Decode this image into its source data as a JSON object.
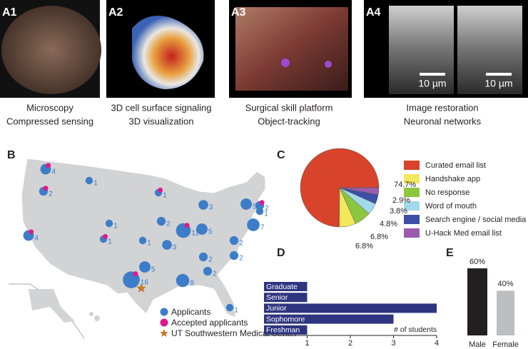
{
  "panels": [
    {
      "label": "A1",
      "caption": [
        "Microscopy",
        "Compressed sensing"
      ]
    },
    {
      "label": "A2",
      "caption": [
        "3D cell surface signaling",
        "3D visualization"
      ]
    },
    {
      "label": "A3",
      "caption": [
        "Surgical skill platform",
        "Object-tracking"
      ]
    },
    {
      "label": "A4",
      "caption": [
        "Image restoration",
        "Neuronal networks"
      ],
      "scale_bar": "10 µm"
    }
  ],
  "map": {
    "label": "B",
    "points": [
      {
        "count": 4,
        "accepted": true
      },
      {
        "count": 2,
        "accepted": true
      },
      {
        "count": 1,
        "accepted": false
      },
      {
        "count": 1,
        "accepted": true
      },
      {
        "count": 4,
        "accepted": true
      },
      {
        "count": 1,
        "accepted": false
      },
      {
        "count": 1,
        "accepted": true
      },
      {
        "count": 2,
        "accepted": false
      },
      {
        "count": 1,
        "accepted": false
      },
      {
        "count": 3,
        "accepted": false
      },
      {
        "count": 11,
        "accepted": true
      },
      {
        "count": 3,
        "accepted": false
      },
      {
        "count": 5,
        "accepted": false
      },
      {
        "count": 5,
        "accepted": false
      },
      {
        "count": 2,
        "accepted": true
      },
      {
        "count": 1,
        "accepted": false
      },
      {
        "count": 7,
        "accepted": false
      },
      {
        "count": 2,
        "accepted": false
      },
      {
        "count": 2,
        "accepted": false
      },
      {
        "count": 2,
        "accepted": false
      },
      {
        "count": 2,
        "accepted": false
      },
      {
        "count": 16,
        "accepted": true
      },
      {
        "count": 5,
        "accepted": false
      },
      {
        "count": 8,
        "accepted": false
      },
      {
        "count": 1,
        "accepted": false
      }
    ],
    "legend": [
      "Applicants",
      "Accepted applicants",
      "UT Southwestern Medical Center"
    ],
    "colors": {
      "applicants": "#3d7cc9",
      "accepted": "#e0198a",
      "center": "#c8782c",
      "land": "#d1d3d4"
    }
  },
  "chart_data": [
    {
      "type": "pie",
      "label": "C",
      "categories": [
        "Curated email list",
        "Handshake app",
        "No response",
        "Word of mouth",
        "Search engine / social media",
        "U-Hack Med email list"
      ],
      "values": [
        74.7,
        6.8,
        6.8,
        4.8,
        3.8,
        2.9
      ],
      "value_labels": [
        "74.7%",
        "6.8%",
        "6.8%",
        "4.8%",
        "3.8%",
        "2.9%"
      ],
      "colors": [
        "#d8432b",
        "#f3e85c",
        "#8dc63f",
        "#a3d9ea",
        "#3d4fa6",
        "#9b5cae"
      ]
    },
    {
      "type": "hbar",
      "label": "D",
      "categories": [
        "Graduate",
        "Senior",
        "Junior",
        "Sophomore",
        "Freshman"
      ],
      "values": [
        1,
        1,
        4,
        3,
        1
      ],
      "color": "#2e3480",
      "xlim": [
        0,
        4
      ],
      "xticks": [
        1,
        2,
        3,
        4
      ],
      "x_label": "# of students"
    },
    {
      "type": "bar",
      "label": "E",
      "categories": [
        "Male",
        "Female"
      ],
      "values": [
        60,
        40
      ],
      "value_labels": [
        "60%",
        "40%"
      ],
      "colors": [
        "#231f20",
        "#bcbec0"
      ]
    }
  ]
}
